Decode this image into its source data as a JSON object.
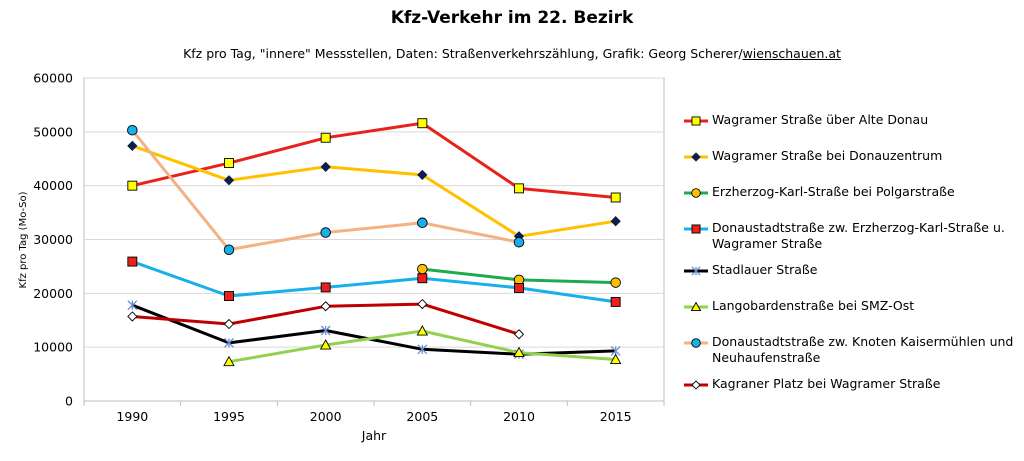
{
  "chart_data": {
    "type": "line",
    "title": "Kfz-Verkehr im 22. Bezirk",
    "subtitle_prefix": "Kfz pro Tag, \"innere\" Messstellen, Daten: Straßenverkehrszählung, Grafik: Georg Scherer/",
    "subtitle_link": "wienschauen.at",
    "xlabel": "Jahr",
    "ylabel": "Kfz pro Tag (Mo-So)",
    "x": [
      1990,
      1995,
      2000,
      2005,
      2010,
      2015
    ],
    "ylim": [
      0,
      60000
    ],
    "yticks": [
      0,
      10000,
      20000,
      30000,
      40000,
      50000,
      60000
    ],
    "ytick_labels": [
      "0",
      "10000",
      "20000",
      "30000",
      "40000",
      "50000",
      "60000"
    ],
    "xtick_labels": [
      "1990",
      "1995",
      "2000",
      "2005",
      "2010",
      "2015"
    ],
    "grid": "horizontal",
    "legend_position": "right",
    "series": [
      {
        "name": "Wagramer Straße über Alte Donau",
        "color": "#e8211c",
        "marker": "square",
        "marker_fill": "#ffff00",
        "values": [
          40000,
          44200,
          48900,
          51600,
          39500,
          37800
        ]
      },
      {
        "name": "Wagramer Straße bei Donauzentrum",
        "color": "#ffc000",
        "marker": "diamond",
        "marker_fill": "#0f1f4a",
        "values": [
          47400,
          41000,
          43500,
          42000,
          30600,
          33400
        ]
      },
      {
        "name": "Erzherzog-Karl-Straße bei Polgarstraße",
        "color": "#1faa4f",
        "marker": "circle",
        "marker_fill": "#ffc000",
        "values": [
          null,
          null,
          null,
          24500,
          22500,
          22000
        ]
      },
      {
        "name": "Donaustadtstraße zw. Erzherzog-Karl-Straße u. Wagramer Straße",
        "color": "#17b0ea",
        "marker": "square",
        "marker_fill": "#e8211c",
        "values": [
          25900,
          19500,
          21100,
          22800,
          21000,
          18400
        ]
      },
      {
        "name": "Stadlauer Straße",
        "color": "#000000",
        "marker": "star",
        "marker_fill": "#6b8fd6",
        "values": [
          17800,
          10800,
          13100,
          9600,
          8700,
          9300
        ]
      },
      {
        "name": "Langobardenstraße bei SMZ-Ost",
        "color": "#92d050",
        "marker": "triangle",
        "marker_fill": "#ffff00",
        "values": [
          null,
          7300,
          10400,
          13000,
          9000,
          7700
        ]
      },
      {
        "name": "Donaustadtstraße zw. Knoten Kaisermühlen und Neuhaufenstraße",
        "color": "#f4b183",
        "marker": "circle",
        "marker_fill": "#17b0ea",
        "values": [
          50300,
          28100,
          31300,
          33100,
          29500,
          null
        ]
      },
      {
        "name": "Kagraner Platz bei Wagramer Straße",
        "color": "#c00000",
        "marker": "diamond",
        "marker_fill": "#ffffff",
        "values": [
          15700,
          14300,
          17600,
          18000,
          12400,
          null
        ]
      }
    ]
  }
}
